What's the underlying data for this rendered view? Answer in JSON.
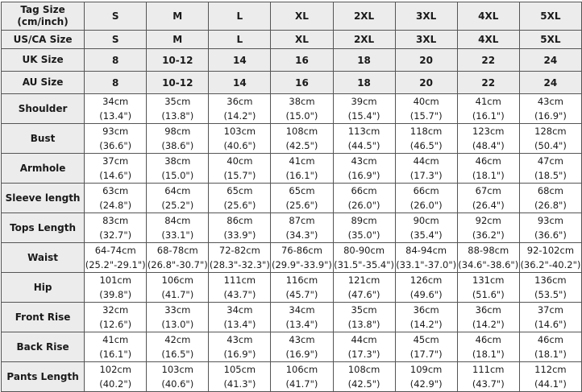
{
  "header_rows": [
    {
      "label": "Tag Size",
      "sublabel": "(cm/inch)",
      "values": [
        "S",
        "M",
        "L",
        "XL",
        "2XL",
        "3XL",
        "4XL",
        "5XL"
      ]
    },
    {
      "label": "US/CA Size",
      "values": [
        "S",
        "M",
        "L",
        "XL",
        "2XL",
        "3XL",
        "4XL",
        "5XL"
      ]
    },
    {
      "label": "UK Size",
      "values": [
        "8",
        "10-12",
        "14",
        "16",
        "18",
        "20",
        "22",
        "24"
      ]
    },
    {
      "label": "AU Size",
      "values": [
        "8",
        "10-12",
        "14",
        "16",
        "18",
        "20",
        "22",
        "24"
      ]
    }
  ],
  "measurement_rows": [
    {
      "label": "Shoulder",
      "cells": [
        [
          "34cm",
          "(13.4\")"
        ],
        [
          "35cm",
          "(13.8\")"
        ],
        [
          "36cm",
          "(14.2\")"
        ],
        [
          "38cm",
          "(15.0\")"
        ],
        [
          "39cm",
          "(15.4\")"
        ],
        [
          "40cm",
          "(15.7\")"
        ],
        [
          "41cm",
          "(16.1\")"
        ],
        [
          "43cm",
          "(16.9\")"
        ]
      ]
    },
    {
      "label": "Bust",
      "cells": [
        [
          "93cm",
          "(36.6\")"
        ],
        [
          "98cm",
          "(38.6\")"
        ],
        [
          "103cm",
          "(40.6\")"
        ],
        [
          "108cm",
          "(42.5\")"
        ],
        [
          "113cm",
          "(44.5\")"
        ],
        [
          "118cm",
          "(46.5\")"
        ],
        [
          "123cm",
          "(48.4\")"
        ],
        [
          "128cm",
          "(50.4\")"
        ]
      ]
    },
    {
      "label": "Armhole",
      "cells": [
        [
          "37cm",
          "(14.6\")"
        ],
        [
          "38cm",
          "(15.0\")"
        ],
        [
          "40cm",
          "(15.7\")"
        ],
        [
          "41cm",
          "(16.1\")"
        ],
        [
          "43cm",
          "(16.9\")"
        ],
        [
          "44cm",
          "(17.3\")"
        ],
        [
          "46cm",
          "(18.1\")"
        ],
        [
          "47cm",
          "(18.5\")"
        ]
      ]
    },
    {
      "label": "Sleeve length",
      "cells": [
        [
          "63cm",
          "(24.8\")"
        ],
        [
          "64cm",
          "(25.2\")"
        ],
        [
          "65cm",
          "(25.6\")"
        ],
        [
          "65cm",
          "(25.6\")"
        ],
        [
          "66cm",
          "(26.0\")"
        ],
        [
          "66cm",
          "(26.0\")"
        ],
        [
          "67cm",
          "(26.4\")"
        ],
        [
          "68cm",
          "(26.8\")"
        ]
      ]
    },
    {
      "label": "Tops Length",
      "cells": [
        [
          "83cm",
          "(32.7\")"
        ],
        [
          "84cm",
          "(33.1\")"
        ],
        [
          "86cm",
          "(33.9\")"
        ],
        [
          "87cm",
          "(34.3\")"
        ],
        [
          "89cm",
          "(35.0\")"
        ],
        [
          "90cm",
          "(35.4\")"
        ],
        [
          "92cm",
          "(36.2\")"
        ],
        [
          "93cm",
          "(36.6\")"
        ]
      ]
    },
    {
      "label": "Waist",
      "cells": [
        [
          "64-74cm",
          "(25.2\"-29.1\")"
        ],
        [
          "68-78cm",
          "(26.8\"-30.7\")"
        ],
        [
          "72-82cm",
          "(28.3\"-32.3\")"
        ],
        [
          "76-86cm",
          "(29.9\"-33.9\")"
        ],
        [
          "80-90cm",
          "(31.5\"-35.4\")"
        ],
        [
          "84-94cm",
          "(33.1\"-37.0\")"
        ],
        [
          "88-98cm",
          "(34.6\"-38.6\")"
        ],
        [
          "92-102cm",
          "(36.2\"-40.2\")"
        ]
      ]
    },
    {
      "label": "Hip",
      "cells": [
        [
          "101cm",
          "(39.8\")"
        ],
        [
          "106cm",
          "(41.7\")"
        ],
        [
          "111cm",
          "(43.7\")"
        ],
        [
          "116cm",
          "(45.7\")"
        ],
        [
          "121cm",
          "(47.6\")"
        ],
        [
          "126cm",
          "(49.6\")"
        ],
        [
          "131cm",
          "(51.6\")"
        ],
        [
          "136cm",
          "(53.5\")"
        ]
      ]
    },
    {
      "label": "Front Rise",
      "cells": [
        [
          "32cm",
          "(12.6\")"
        ],
        [
          "33cm",
          "(13.0\")"
        ],
        [
          "34cm",
          "(13.4\")"
        ],
        [
          "34cm",
          "(13.4\")"
        ],
        [
          "35cm",
          "(13.8\")"
        ],
        [
          "36cm",
          "(14.2\")"
        ],
        [
          "36cm",
          "(14.2\")"
        ],
        [
          "37cm",
          "(14.6\")"
        ]
      ]
    },
    {
      "label": "Back Rise",
      "cells": [
        [
          "41cm",
          "(16.1\")"
        ],
        [
          "42cm",
          "(16.5\")"
        ],
        [
          "43cm",
          "(16.9\")"
        ],
        [
          "43cm",
          "(16.9\")"
        ],
        [
          "44cm",
          "(17.3\")"
        ],
        [
          "45cm",
          "(17.7\")"
        ],
        [
          "46cm",
          "(18.1\")"
        ],
        [
          "46cm",
          "(18.1\")"
        ]
      ]
    },
    {
      "label": "Pants Length",
      "cells": [
        [
          "102cm",
          "(40.2\")"
        ],
        [
          "103cm",
          "(40.6\")"
        ],
        [
          "105cm",
          "(41.3\")"
        ],
        [
          "106cm",
          "(41.7\")"
        ],
        [
          "108cm",
          "(42.5\")"
        ],
        [
          "109cm",
          "(42.9\")"
        ],
        [
          "111cm",
          "(43.7\")"
        ],
        [
          "112cm",
          "(44.1\")"
        ]
      ]
    }
  ],
  "colors": {
    "header_bg": "#ececec",
    "border": "#555555",
    "cell_bg": "#ffffff"
  }
}
